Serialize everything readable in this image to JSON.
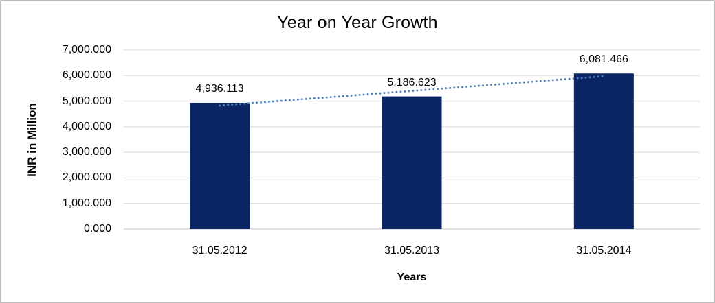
{
  "chart_data": {
    "type": "bar",
    "title": "Year on Year Growth",
    "xlabel": "Years",
    "ylabel": "INR in Million",
    "categories": [
      "31.05.2012",
      "31.05.2013",
      "31.05.2014"
    ],
    "values": [
      4936.113,
      5186.623,
      6081.466
    ],
    "value_labels": [
      "4,936.113",
      "5,186.623",
      "6,081.466"
    ],
    "y_tick_labels": [
      "7,000.000",
      "6,000.000",
      "5,000.000",
      "4,000.000",
      "3,000.000",
      "2,000.000",
      "1,000.000",
      "0.000"
    ],
    "ylim": [
      0,
      7000
    ],
    "y_tick_step": 1000,
    "grid": true,
    "legend": "none",
    "bar_color": "#0a2464",
    "trendline": {
      "type": "linear",
      "style": "dotted",
      "color": "#4f81bd"
    }
  },
  "colors": {
    "gridline": "#d9d9d9",
    "baseline": "#c6c6c6",
    "frame_border": "#bdbdbd",
    "text": "#000000",
    "background": "#ffffff"
  }
}
